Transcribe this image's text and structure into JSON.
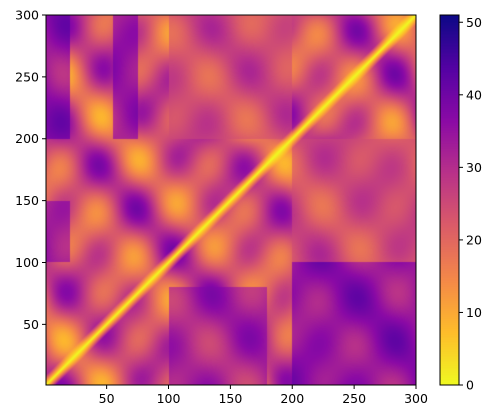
{
  "chart_data": {
    "type": "heatmap",
    "title": "",
    "xlabel": "",
    "ylabel": "",
    "xlim": [
      1,
      300
    ],
    "ylim": [
      1,
      300
    ],
    "x_ticks": [
      50,
      100,
      150,
      200,
      250,
      300
    ],
    "y_ticks": [
      50,
      100,
      150,
      200,
      250,
      300
    ],
    "origin": "lower",
    "colormap": "plasma_r",
    "colorbar": {
      "range": [
        0,
        51
      ],
      "ticks": [
        0,
        10,
        20,
        30,
        40,
        50
      ],
      "placement": "right"
    },
    "diagonal_value": 0,
    "description_values": {
      "min": 0,
      "max": 51
    },
    "regions": [
      {
        "x": [
          1,
          20
        ],
        "y": [
          200,
          300
        ],
        "value": 45
      },
      {
        "x": [
          55,
          75
        ],
        "y": [
          200,
          300
        ],
        "value": 42
      },
      {
        "x": [
          200,
          300
        ],
        "y": [
          1,
          100
        ],
        "value": 44
      },
      {
        "x": [
          100,
          180
        ],
        "y": [
          1,
          80
        ],
        "value": 38
      },
      {
        "x": [
          1,
          20
        ],
        "y": [
          100,
          150
        ],
        "value": 40
      },
      {
        "x": [
          200,
          300
        ],
        "y": [
          100,
          200
        ],
        "value": 25
      },
      {
        "x": [
          100,
          200
        ],
        "y": [
          200,
          300
        ],
        "value": 25
      }
    ]
  }
}
